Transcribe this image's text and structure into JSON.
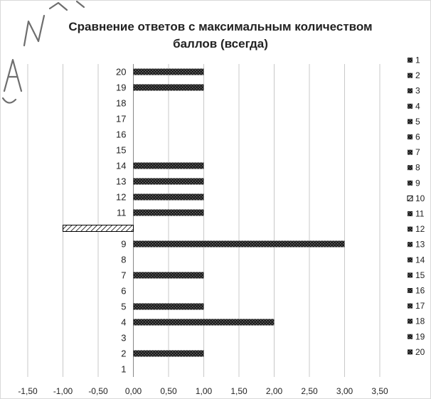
{
  "chart_data": {
    "type": "bar",
    "orientation": "horizontal",
    "title_line1": "Сравнение ответов с максимальным количеством",
    "title_line2": "баллов (всегда)",
    "categories": [
      "1",
      "2",
      "3",
      "4",
      "5",
      "6",
      "7",
      "8",
      "9",
      "10",
      "11",
      "12",
      "13",
      "14",
      "15",
      "16",
      "17",
      "18",
      "19",
      "20"
    ],
    "category_labels": [
      "1",
      "2",
      "3",
      "4",
      "5",
      "6",
      "7",
      "8",
      "9",
      "",
      "11",
      "12",
      "13",
      "14",
      "15",
      "16",
      "17",
      "18",
      "19",
      "20"
    ],
    "series": [
      {
        "name": "1",
        "values": [
          0,
          0,
          0,
          0,
          0,
          0,
          0,
          0,
          0,
          0,
          0,
          0,
          0,
          0,
          0,
          0,
          0,
          0,
          0,
          0
        ]
      },
      {
        "name": "2",
        "values": [
          0,
          1,
          0,
          0,
          0,
          0,
          0,
          0,
          0,
          0,
          0,
          0,
          0,
          0,
          0,
          0,
          0,
          0,
          0,
          0
        ]
      },
      {
        "name": "3",
        "values": [
          0,
          0,
          0,
          0,
          0,
          0,
          0,
          0,
          0,
          0,
          0,
          0,
          0,
          0,
          0,
          0,
          0,
          0,
          0,
          0
        ]
      },
      {
        "name": "4",
        "values": [
          0,
          0,
          0,
          2,
          0,
          0,
          0,
          0,
          0,
          0,
          0,
          0,
          0,
          0,
          0,
          0,
          0,
          0,
          0,
          0
        ]
      },
      {
        "name": "5",
        "values": [
          0,
          0,
          0,
          0,
          1,
          0,
          0,
          0,
          0,
          0,
          0,
          0,
          0,
          0,
          0,
          0,
          0,
          0,
          0,
          0
        ]
      },
      {
        "name": "6",
        "values": [
          0,
          0,
          0,
          0,
          0,
          0,
          0,
          0,
          0,
          0,
          0,
          0,
          0,
          0,
          0,
          0,
          0,
          0,
          0,
          0
        ]
      },
      {
        "name": "7",
        "values": [
          0,
          0,
          0,
          0,
          0,
          0,
          1,
          0,
          0,
          0,
          0,
          0,
          0,
          0,
          0,
          0,
          0,
          0,
          0,
          0
        ]
      },
      {
        "name": "8",
        "values": [
          0,
          0,
          0,
          0,
          0,
          0,
          0,
          0,
          0,
          0,
          0,
          0,
          0,
          0,
          0,
          0,
          0,
          0,
          0,
          0
        ]
      },
      {
        "name": "9",
        "values": [
          0,
          0,
          0,
          0,
          0,
          0,
          0,
          0,
          3,
          0,
          0,
          0,
          0,
          0,
          0,
          0,
          0,
          0,
          0,
          0
        ]
      },
      {
        "name": "10",
        "values": [
          0,
          0,
          0,
          0,
          0,
          0,
          0,
          0,
          0,
          -1,
          0,
          0,
          0,
          0,
          0,
          0,
          0,
          0,
          0,
          0
        ]
      },
      {
        "name": "11",
        "values": [
          0,
          0,
          0,
          0,
          0,
          0,
          0,
          0,
          0,
          0,
          1,
          0,
          0,
          0,
          0,
          0,
          0,
          0,
          0,
          0
        ]
      },
      {
        "name": "12",
        "values": [
          0,
          0,
          0,
          0,
          0,
          0,
          0,
          0,
          0,
          0,
          0,
          1,
          0,
          0,
          0,
          0,
          0,
          0,
          0,
          0
        ]
      },
      {
        "name": "13",
        "values": [
          0,
          0,
          0,
          0,
          0,
          0,
          0,
          0,
          0,
          0,
          0,
          0,
          1,
          0,
          0,
          0,
          0,
          0,
          0,
          0
        ]
      },
      {
        "name": "14",
        "values": [
          0,
          0,
          0,
          0,
          0,
          0,
          0,
          0,
          0,
          0,
          0,
          0,
          0,
          1,
          0,
          0,
          0,
          0,
          0,
          0
        ]
      },
      {
        "name": "15",
        "values": [
          0,
          0,
          0,
          0,
          0,
          0,
          0,
          0,
          0,
          0,
          0,
          0,
          0,
          0,
          0,
          0,
          0,
          0,
          0,
          0
        ]
      },
      {
        "name": "16",
        "values": [
          0,
          0,
          0,
          0,
          0,
          0,
          0,
          0,
          0,
          0,
          0,
          0,
          0,
          0,
          0,
          0,
          0,
          0,
          0,
          0
        ]
      },
      {
        "name": "17",
        "values": [
          0,
          0,
          0,
          0,
          0,
          0,
          0,
          0,
          0,
          0,
          0,
          0,
          0,
          0,
          0,
          0,
          0,
          0,
          0,
          0
        ]
      },
      {
        "name": "18",
        "values": [
          0,
          0,
          0,
          0,
          0,
          0,
          0,
          0,
          0,
          0,
          0,
          0,
          0,
          0,
          0,
          0,
          0,
          0,
          0,
          0
        ]
      },
      {
        "name": "19",
        "values": [
          0,
          0,
          0,
          0,
          0,
          0,
          0,
          0,
          0,
          0,
          0,
          0,
          0,
          0,
          0,
          0,
          0,
          0,
          1,
          0
        ]
      },
      {
        "name": "20",
        "values": [
          0,
          0,
          0,
          0,
          0,
          0,
          0,
          0,
          0,
          0,
          0,
          0,
          0,
          0,
          0,
          0,
          0,
          0,
          0,
          1
        ]
      }
    ],
    "xlim": [
      -1.5,
      3.5
    ],
    "xticks": [
      -1.5,
      -1.0,
      -0.5,
      0.0,
      0.5,
      1.0,
      1.5,
      2.0,
      2.5,
      3.0,
      3.5
    ],
    "xtick_labels": [
      "-1,50",
      "-1,00",
      "-0,50",
      "0,00",
      "0,50",
      "1,00",
      "1,50",
      "2,00",
      "2,50",
      "3,00",
      "3,50"
    ],
    "grid": "vertical",
    "legend_position": "right",
    "colors": {
      "dark_fill": "#1a1a1a",
      "dark_pattern": "#3a3a3a",
      "hatch_fill": "#ffffff",
      "hatch_line": "#000000",
      "grid": "#c8c8c8",
      "axis": "#888888",
      "watermark": "#555555"
    },
    "patterns": {
      "default": "dots",
      "10": "diagonal-hatch"
    }
  }
}
